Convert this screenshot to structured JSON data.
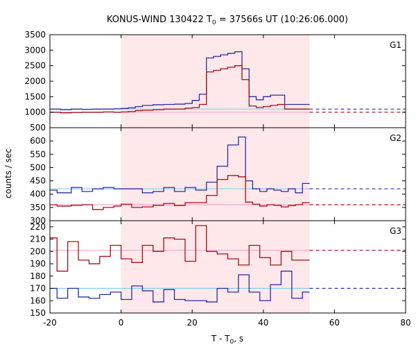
{
  "title": {
    "prefix": "KONUS-WIND 130422 T",
    "sub": "0",
    "suffix": " = 37566s UT (10:26:06.000)"
  },
  "xlabel": {
    "prefix": "T - T",
    "sub": "0",
    "suffix": ", s"
  },
  "ylabel": "counts / sec",
  "colors": {
    "shade": "#ffe8ea",
    "blue": "#2a2aa8",
    "red": "#a80c14",
    "light_blue": "#7fd0f0",
    "light_pink": "#f2a6d6"
  },
  "chart_data": {
    "type": "line",
    "xlim": [
      -20,
      80
    ],
    "xticks": [
      -20,
      0,
      20,
      40,
      60,
      80
    ],
    "xtick_labels": [
      "-20",
      "0",
      "20",
      "40",
      "60",
      "80"
    ],
    "shaded_interval": [
      0,
      53
    ],
    "panels": [
      {
        "label": "G1",
        "ylim": [
          500,
          3500
        ],
        "yticks": [
          500,
          1000,
          1500,
          2000,
          2500,
          3000,
          3500
        ],
        "ytick_labels": [
          "500",
          "1000",
          "1500",
          "2000",
          "2500",
          "3000",
          "3500"
        ],
        "background": {
          "blue": 1100,
          "red": 1000
        },
        "series": [
          {
            "color": "blue",
            "x": [
              -20,
              -17,
              -14,
              -11,
              -8,
              -5,
              -2,
              0,
              2,
              4,
              6,
              9,
              12,
              15,
              18,
              20,
              22,
              24,
              26,
              28,
              30,
              32,
              34,
              36,
              38,
              40,
              42,
              44,
              46,
              48,
              53
            ],
            "y": [
              1100,
              1080,
              1100,
              1090,
              1100,
              1100,
              1110,
              1120,
              1140,
              1180,
              1220,
              1240,
              1250,
              1260,
              1280,
              1380,
              1580,
              2750,
              2800,
              2850,
              2900,
              2950,
              2400,
              1500,
              1400,
              1500,
              1550,
              1550,
              1250,
              1250,
              1250
            ]
          },
          {
            "color": "red",
            "x": [
              -20,
              -17,
              -14,
              -11,
              -8,
              -5,
              -2,
              0,
              2,
              4,
              6,
              9,
              12,
              15,
              18,
              20,
              22,
              24,
              26,
              28,
              30,
              32,
              34,
              36,
              38,
              40,
              42,
              44,
              46,
              48,
              53
            ],
            "y": [
              1000,
              980,
              990,
              1000,
              1000,
              1010,
              1000,
              1010,
              1020,
              1050,
              1060,
              1080,
              1100,
              1100,
              1130,
              1150,
              1250,
              2300,
              2350,
              2400,
              2450,
              2500,
              2050,
              1200,
              1150,
              1180,
              1220,
              1250,
              1100,
              1100,
              1100
            ]
          }
        ]
      },
      {
        "label": "G2",
        "ylim": [
          300,
          650
        ],
        "yticks": [
          300,
          350,
          400,
          450,
          500,
          550,
          600
        ],
        "ytick_labels": [
          "300",
          "350",
          "400",
          "450",
          "500",
          "550",
          "600"
        ],
        "background": {
          "blue": 420,
          "red": 360
        },
        "series": [
          {
            "color": "blue",
            "x": [
              -20,
              -18,
              -14,
              -11,
              -8,
              -5,
              -2,
              0,
              3,
              6,
              9,
              12,
              15,
              18,
              21,
              24,
              27,
              30,
              33,
              35,
              37,
              39,
              41,
              43,
              45,
              47,
              49,
              51,
              53
            ],
            "y": [
              415,
              405,
              425,
              410,
              420,
              425,
              420,
              420,
              420,
              405,
              410,
              425,
              410,
              425,
              415,
              445,
              505,
              585,
              615,
              450,
              420,
              410,
              420,
              415,
              410,
              420,
              405,
              440,
              440
            ]
          },
          {
            "color": "red",
            "x": [
              -20,
              -18,
              -14,
              -11,
              -8,
              -5,
              -2,
              0,
              3,
              6,
              9,
              12,
              15,
              18,
              21,
              24,
              27,
              30,
              33,
              35,
              37,
              39,
              41,
              43,
              45,
              47,
              49,
              51,
              53
            ],
            "y": [
              360,
              355,
              358,
              360,
              342,
              350,
              355,
              362,
              350,
              352,
              358,
              365,
              357,
              368,
              368,
              395,
              455,
              470,
              465,
              370,
              362,
              355,
              360,
              358,
              352,
              357,
              360,
              368,
              368
            ]
          }
        ]
      },
      {
        "label": "G3",
        "ylim": [
          150,
          225
        ],
        "yticks": [
          150,
          160,
          170,
          180,
          190,
          200,
          210,
          220
        ],
        "ytick_labels": [
          "150",
          "160",
          "170",
          "180",
          "190",
          "200",
          "210",
          "220"
        ],
        "background": {
          "blue": 170,
          "red": 201
        },
        "series": [
          {
            "color": "red",
            "x": [
              -20,
              -18,
              -15,
              -12,
              -9,
              -6,
              -3,
              0,
              3,
              6,
              9,
              12,
              15,
              18,
              21,
              24,
              27,
              30,
              33,
              36,
              39,
              42,
              45,
              48,
              51,
              53
            ],
            "y": [
              211,
              184,
              208,
              193,
              190,
              196,
              205,
              194,
              191,
              205,
              200,
              211,
              210,
              192,
              221,
              200,
              198,
              194,
              189,
              205,
              195,
              189,
              200,
              193,
              193,
              193
            ]
          },
          {
            "color": "blue",
            "x": [
              -20,
              -18,
              -15,
              -12,
              -9,
              -6,
              -3,
              0,
              3,
              6,
              9,
              12,
              15,
              18,
              21,
              24,
              27,
              30,
              33,
              36,
              39,
              42,
              45,
              48,
              51,
              53
            ],
            "y": [
              170,
              162,
              170,
              163,
              162,
              165,
              167,
              161,
              172,
              168,
              159,
              169,
              161,
              160,
              160,
              159,
              170,
              167,
              181,
              167,
              160,
              173,
              184,
              162,
              167,
              167
            ]
          }
        ]
      }
    ]
  }
}
